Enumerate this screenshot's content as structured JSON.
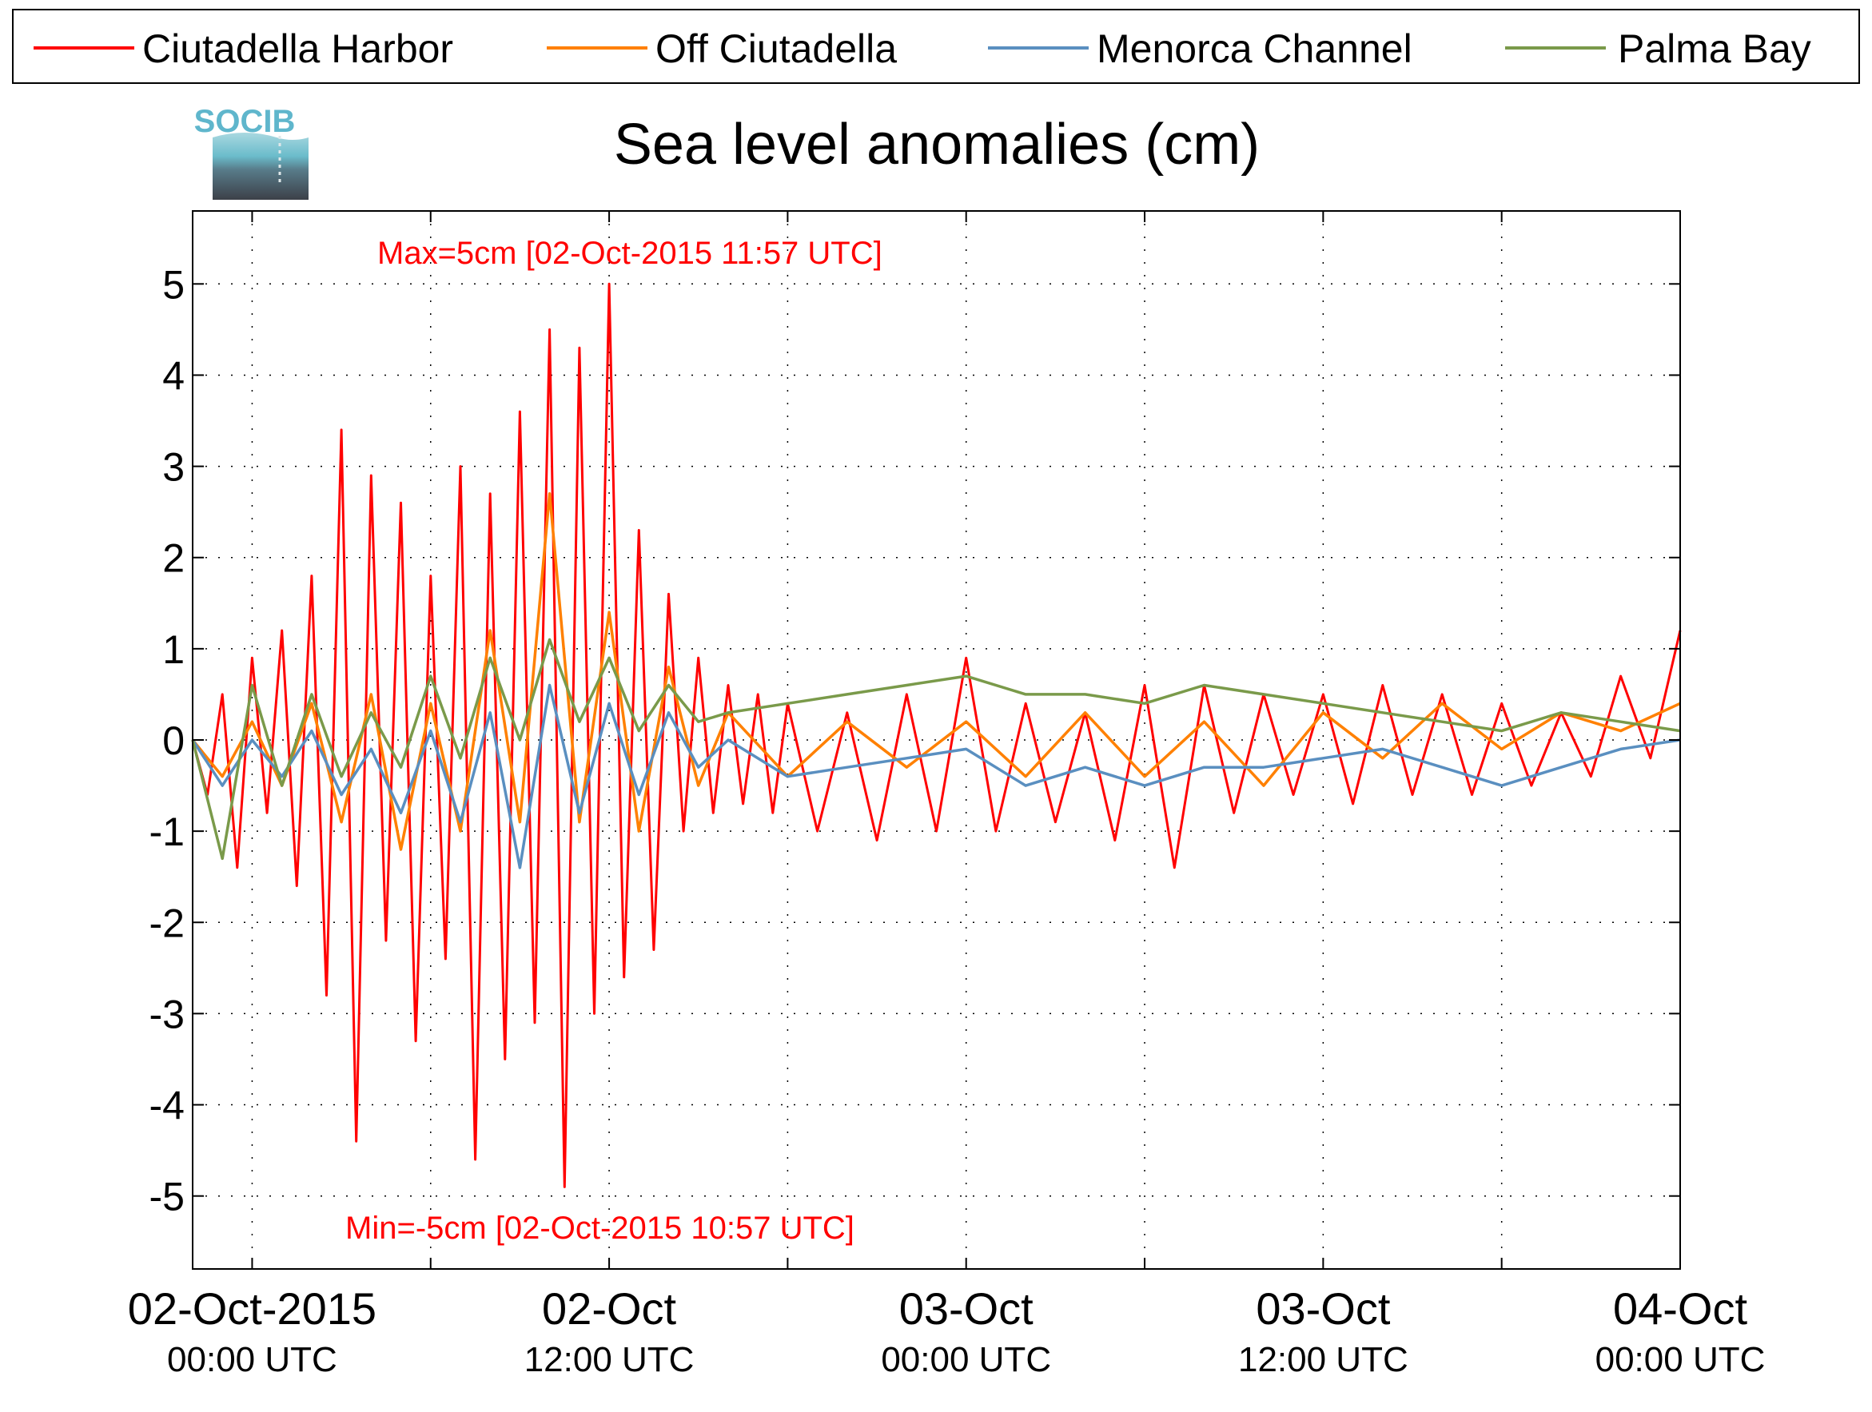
{
  "logo": {
    "text": "SOCIB"
  },
  "chart_data": {
    "type": "line",
    "title": "Sea level anomalies (cm)",
    "xlabel": "",
    "ylabel": "",
    "ylim": [
      -5.8,
      5.8
    ],
    "yticks": [
      5,
      4,
      3,
      2,
      1,
      0,
      -1,
      -2,
      -3,
      -4,
      -5
    ],
    "xlim": [
      "2015-10-01 22:00",
      "2015-10-04 00:00"
    ],
    "xticks": [
      {
        "line1": "02-Oct-2015",
        "line2": "00:00 UTC"
      },
      {
        "line1": "02-Oct",
        "line2": "12:00 UTC"
      },
      {
        "line1": "03-Oct",
        "line2": "00:00 UTC"
      },
      {
        "line1": "03-Oct",
        "line2": "12:00 UTC"
      },
      {
        "line1": "04-Oct",
        "line2": "00:00 UTC"
      }
    ],
    "grid": true,
    "legend_position": "top",
    "annotations": {
      "max": "Max=5cm [02-Oct-2015 11:57 UTC]",
      "min": "Min=-5cm [02-Oct-2015 10:57 UTC]"
    },
    "series": [
      {
        "name": "Ciutadella Harbor",
        "color": "#ff0000",
        "x_hours": [
          -2,
          -1.5,
          -1,
          -0.5,
          0,
          0.5,
          1,
          1.5,
          2,
          2.5,
          3,
          3.5,
          4,
          4.5,
          5,
          5.5,
          6,
          6.5,
          7,
          7.5,
          8,
          8.5,
          9,
          9.5,
          10,
          10.5,
          11,
          11.5,
          12,
          12.5,
          13,
          13.5,
          14,
          14.5,
          15,
          15.5,
          16,
          16.5,
          17,
          17.5,
          18,
          19,
          20,
          21,
          22,
          23,
          24,
          25,
          26,
          27,
          28,
          29,
          30,
          31,
          32,
          33,
          34,
          35,
          36,
          37,
          38,
          39,
          40,
          41,
          42,
          43,
          44,
          45,
          46,
          47,
          48
        ],
        "y": [
          0.0,
          -0.6,
          0.5,
          -1.4,
          0.9,
          -0.8,
          1.2,
          -1.6,
          1.8,
          -2.8,
          3.4,
          -4.4,
          2.9,
          -2.2,
          2.6,
          -3.3,
          1.8,
          -2.4,
          3.0,
          -4.6,
          2.7,
          -3.5,
          3.6,
          -3.1,
          4.5,
          -4.9,
          4.3,
          -3.0,
          5.0,
          -2.6,
          2.3,
          -2.3,
          1.6,
          -1.0,
          0.9,
          -0.8,
          0.6,
          -0.7,
          0.5,
          -0.8,
          0.4,
          -1.0,
          0.3,
          -1.1,
          0.5,
          -1.0,
          0.9,
          -1.0,
          0.4,
          -0.9,
          0.3,
          -1.1,
          0.6,
          -1.4,
          0.6,
          -0.8,
          0.5,
          -0.6,
          0.5,
          -0.7,
          0.6,
          -0.6,
          0.5,
          -0.6,
          0.4,
          -0.5,
          0.3,
          -0.4,
          0.7,
          -0.2,
          1.2
        ]
      },
      {
        "name": "Off Ciutadella",
        "color": "#ff8000",
        "x_hours": [
          -2,
          -1,
          0,
          1,
          2,
          3,
          4,
          5,
          6,
          7,
          8,
          9,
          10,
          11,
          12,
          13,
          14,
          15,
          16,
          18,
          20,
          22,
          24,
          26,
          28,
          30,
          32,
          34,
          36,
          38,
          40,
          42,
          44,
          46,
          48
        ],
        "y": [
          0.0,
          -0.4,
          0.2,
          -0.5,
          0.4,
          -0.9,
          0.5,
          -1.2,
          0.4,
          -1.0,
          1.2,
          -0.9,
          2.7,
          -0.9,
          1.4,
          -1.0,
          0.8,
          -0.5,
          0.3,
          -0.4,
          0.2,
          -0.3,
          0.2,
          -0.4,
          0.3,
          -0.4,
          0.2,
          -0.5,
          0.3,
          -0.2,
          0.4,
          -0.1,
          0.3,
          0.1,
          0.4
        ]
      },
      {
        "name": "Menorca Channel",
        "color": "#5a8fc0",
        "x_hours": [
          -2,
          -1,
          0,
          1,
          2,
          3,
          4,
          5,
          6,
          7,
          8,
          9,
          10,
          11,
          12,
          13,
          14,
          15,
          16,
          18,
          20,
          22,
          24,
          26,
          28,
          30,
          32,
          34,
          36,
          38,
          40,
          42,
          44,
          46,
          48
        ],
        "y": [
          0.0,
          -0.5,
          0.0,
          -0.4,
          0.1,
          -0.6,
          -0.1,
          -0.8,
          0.1,
          -0.9,
          0.3,
          -1.4,
          0.6,
          -0.8,
          0.4,
          -0.6,
          0.3,
          -0.3,
          0.0,
          -0.4,
          -0.3,
          -0.2,
          -0.1,
          -0.5,
          -0.3,
          -0.5,
          -0.3,
          -0.3,
          -0.2,
          -0.1,
          -0.3,
          -0.5,
          -0.3,
          -0.1,
          0.0
        ]
      },
      {
        "name": "Palma Bay",
        "color": "#7a9a4a",
        "x_hours": [
          -2,
          -1,
          0,
          1,
          2,
          3,
          4,
          5,
          6,
          7,
          8,
          9,
          10,
          11,
          12,
          13,
          14,
          15,
          16,
          18,
          20,
          22,
          24,
          26,
          28,
          30,
          32,
          34,
          36,
          38,
          40,
          42,
          44,
          46,
          48
        ],
        "y": [
          0.0,
          -1.3,
          0.6,
          -0.5,
          0.5,
          -0.4,
          0.3,
          -0.3,
          0.7,
          -0.2,
          0.9,
          0.0,
          1.1,
          0.2,
          0.9,
          0.1,
          0.6,
          0.2,
          0.3,
          0.4,
          0.5,
          0.6,
          0.7,
          0.5,
          0.5,
          0.4,
          0.6,
          0.5,
          0.4,
          0.3,
          0.2,
          0.1,
          0.3,
          0.2,
          0.1
        ]
      }
    ]
  }
}
